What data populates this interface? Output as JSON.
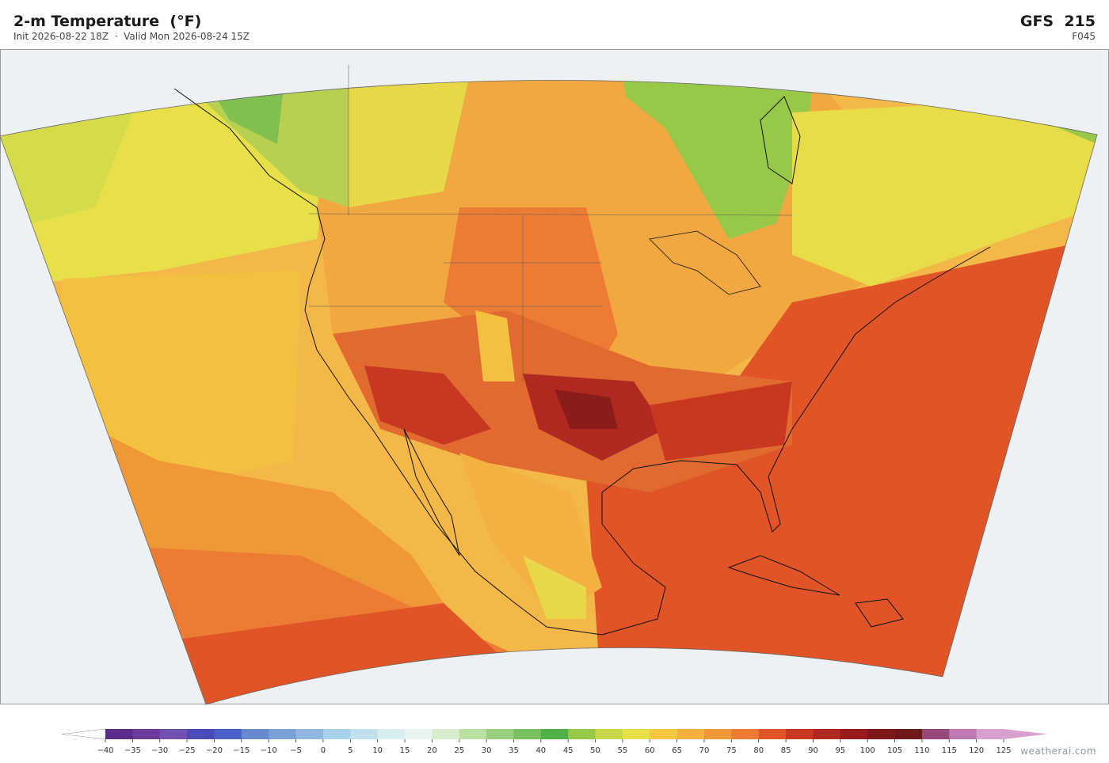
{
  "header": {
    "title": "2-m Temperature  (°F)",
    "subtitle": "Init 2026-08-22 18Z  ·  Valid Mon 2026-08-24 15Z",
    "model": "GFS  215",
    "forecast_hour": "F045"
  },
  "colorbar": {
    "ticks": [
      {
        "value": -40,
        "label": "−40"
      },
      {
        "value": -35,
        "label": "−35"
      },
      {
        "value": -30,
        "label": "−30"
      },
      {
        "value": -25,
        "label": "−25"
      },
      {
        "value": -20,
        "label": "−20"
      },
      {
        "value": -15,
        "label": "−15"
      },
      {
        "value": -10,
        "label": "−10"
      },
      {
        "value": -5,
        "label": "−5"
      },
      0,
      5,
      10,
      15,
      20,
      25,
      30,
      35,
      40,
      45,
      50,
      55,
      60,
      65,
      70,
      75,
      80,
      85,
      90,
      95,
      100,
      105,
      110,
      115,
      120,
      125
    ],
    "colors": [
      "#5b2a8c",
      "#6a3a9c",
      "#7050b0",
      "#4a4ab8",
      "#4a60c8",
      "#6888d0",
      "#7aa0d8",
      "#90b8e0",
      "#a8d0e8",
      "#c0e0ee",
      "#d8eef2",
      "#e8f4ee",
      "#d6eccc",
      "#b8e0a0",
      "#98d080",
      "#78c060",
      "#50b048",
      "#98c848",
      "#c8d848",
      "#e8e048",
      "#f4c840",
      "#f4b040",
      "#f09838",
      "#ec7c34",
      "#e05428",
      "#c83820",
      "#b02820",
      "#981c1c",
      "#801818",
      "#701818",
      "#984878",
      "#c078b0",
      "#d8a0d0"
    ],
    "under_color": "#ffffff",
    "over_color": "#d8a0d0"
  },
  "footer": {
    "credit": "weatherai.com"
  }
}
